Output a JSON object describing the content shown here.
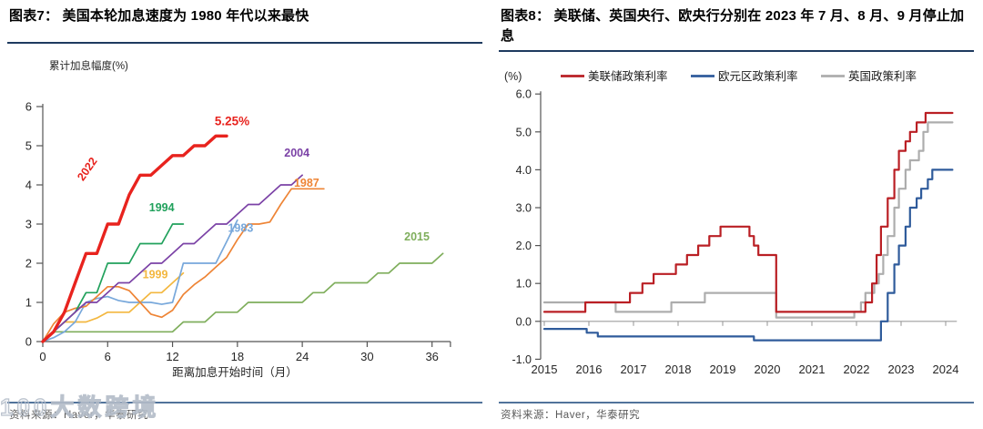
{
  "panels": [
    {
      "title": "图表7：  美国本轮加息速度为 1980 年代以来最快",
      "source": "资料来源：Haver，华泰研究",
      "watermark": "100大数跨境"
    },
    {
      "title": "图表8：  美联储、英国央行、欧央行分别在 2023 年 7 月、8 月、9 月停止加息",
      "source": "资料来源：Haver，华泰研究"
    }
  ],
  "chart_data": [
    {
      "type": "line",
      "title": "美国本轮加息速度为 1980 年代以来最快",
      "ylabel": "累计加息幅度(%)",
      "xlabel": "距离加息开始时间（月）",
      "xlim": [
        0,
        37.7
      ],
      "ylim": [
        0,
        6
      ],
      "xticks": [
        0,
        6,
        12,
        18,
        24,
        30,
        36
      ],
      "yticks": [
        0,
        1,
        2,
        3,
        4,
        5,
        6
      ],
      "grid": false,
      "x_meaning": "months since first hike",
      "series": [
        {
          "name": "2015",
          "color": "#7FAE5C",
          "width": 1.7,
          "values": [
            0,
            0.25,
            0.25,
            0.25,
            0.25,
            0.25,
            0.25,
            0.25,
            0.25,
            0.25,
            0.25,
            0.25,
            0.25,
            0.5,
            0.5,
            0.5,
            0.75,
            0.75,
            0.75,
            1,
            1,
            1,
            1,
            1,
            1,
            1.25,
            1.25,
            1.5,
            1.5,
            1.5,
            1.5,
            1.75,
            1.75,
            2,
            2,
            2,
            2,
            2.25
          ],
          "label": {
            "text": "2015",
            "x": 34.6,
            "y": 2.58,
            "rotate": 0
          }
        },
        {
          "name": "1999",
          "color": "#F3B73F",
          "width": 1.7,
          "values": [
            0,
            0.25,
            0.5,
            0.5,
            0.5,
            0.6,
            0.75,
            0.75,
            0.75,
            1,
            1.25,
            1.25,
            1.5,
            1.75
          ],
          "label": {
            "text": "1999",
            "x": 10.4,
            "y": 1.62,
            "rotate": 0
          }
        },
        {
          "name": "1983",
          "color": "#78A8DB",
          "width": 1.7,
          "values": [
            0,
            0.1,
            0.25,
            0.5,
            1,
            1.1,
            1.15,
            1.05,
            1,
            1,
            1,
            0.95,
            1,
            2,
            2,
            2,
            2,
            2.55,
            3.1
          ],
          "label": {
            "text": "1983",
            "x": 18.3,
            "y": 2.8,
            "rotate": 0
          }
        },
        {
          "name": "1987",
          "color": "#EE8435",
          "width": 1.7,
          "values": [
            0,
            0.45,
            0.75,
            0.85,
            0.9,
            1.15,
            1.4,
            1.4,
            1.3,
            1,
            0.7,
            0.62,
            0.8,
            1.2,
            1.45,
            1.65,
            1.9,
            2.15,
            2.6,
            3,
            3,
            3.05,
            3.5,
            3.9,
            3.9,
            3.9,
            3.9
          ],
          "label": {
            "text": "1987",
            "x": 24.4,
            "y": 3.95,
            "rotate": 0
          }
        },
        {
          "name": "1994",
          "color": "#21A15C",
          "width": 1.7,
          "values": [
            0,
            0.25,
            0.5,
            0.75,
            1.25,
            1.25,
            2,
            2,
            2,
            2.5,
            2.5,
            2.5,
            3,
            3
          ],
          "label": {
            "text": "1994",
            "x": 11,
            "y": 3.32,
            "rotate": 0
          }
        },
        {
          "name": "2004",
          "color": "#7B42A6",
          "width": 1.7,
          "values": [
            0,
            0.25,
            0.5,
            0.75,
            1,
            1,
            1.25,
            1.5,
            1.5,
            1.75,
            2,
            2,
            2.25,
            2.5,
            2.5,
            2.75,
            3,
            3,
            3.25,
            3.5,
            3.5,
            3.75,
            4,
            4,
            4.25
          ],
          "label": {
            "text": "2004",
            "x": 23.5,
            "y": 4.72,
            "rotate": 0
          }
        },
        {
          "name": "2022",
          "color": "#E8231E",
          "width": 3.4,
          "values": [
            0,
            0.25,
            0.75,
            1.5,
            2.25,
            2.25,
            3,
            3,
            3.75,
            4.25,
            4.25,
            4.5,
            4.75,
            4.75,
            5,
            5,
            5.25,
            5.25
          ],
          "label": {
            "text": "2022",
            "x": 4.4,
            "y": 4.35,
            "rotate": -55
          }
        }
      ],
      "annotations": [
        {
          "text": "5.25%",
          "x": 15.9,
          "y": 5.52,
          "color": "#E8231E"
        }
      ]
    },
    {
      "type": "line",
      "title": "美联储、英国央行、欧央行分别在 2023 年 7 月、8 月、9 月停止加息",
      "unit_label": "(%)",
      "xlim": [
        2015,
        2024.2
      ],
      "ylim": [
        -1,
        6
      ],
      "xticks": [
        2015,
        2016,
        2017,
        2018,
        2019,
        2020,
        2021,
        2022,
        2023,
        2024
      ],
      "yticks": [
        -1,
        0,
        1,
        2,
        3,
        4,
        5,
        6
      ],
      "grid": false,
      "legend_position": "top",
      "legend": [
        {
          "label": "美联储政策利率",
          "color": "#BA1F24"
        },
        {
          "label": "欧元区政策利率",
          "color": "#2F5B9B"
        },
        {
          "label": "英国政策利率",
          "color": "#ADADAD"
        }
      ],
      "series": [
        {
          "name": "欧元区政策利率",
          "color": "#2F5B9B",
          "width": 2.2,
          "end": 2024.15,
          "points": [
            [
              2015.0,
              -0.2
            ],
            [
              2015.95,
              -0.3
            ],
            [
              2016.2,
              -0.4
            ],
            [
              2019.7,
              -0.5
            ],
            [
              2022.55,
              0.0
            ],
            [
              2022.7,
              0.75
            ],
            [
              2022.85,
              1.5
            ],
            [
              2022.95,
              2.0
            ],
            [
              2023.1,
              2.5
            ],
            [
              2023.2,
              3.0
            ],
            [
              2023.35,
              3.25
            ],
            [
              2023.45,
              3.5
            ],
            [
              2023.6,
              3.75
            ],
            [
              2023.7,
              4.0
            ]
          ]
        },
        {
          "name": "英国政策利率",
          "color": "#ADADAD",
          "width": 2.2,
          "end": 2024.15,
          "points": [
            [
              2015.0,
              0.5
            ],
            [
              2016.6,
              0.25
            ],
            [
              2017.85,
              0.5
            ],
            [
              2018.6,
              0.75
            ],
            [
              2020.2,
              0.1
            ],
            [
              2021.95,
              0.25
            ],
            [
              2022.1,
              0.5
            ],
            [
              2022.2,
              0.75
            ],
            [
              2022.4,
              1.0
            ],
            [
              2022.5,
              1.25
            ],
            [
              2022.6,
              1.75
            ],
            [
              2022.7,
              2.25
            ],
            [
              2022.85,
              3.0
            ],
            [
              2022.95,
              3.5
            ],
            [
              2023.1,
              4.0
            ],
            [
              2023.2,
              4.25
            ],
            [
              2023.4,
              4.5
            ],
            [
              2023.5,
              5.0
            ],
            [
              2023.6,
              5.25
            ]
          ]
        },
        {
          "name": "美联储政策利率",
          "color": "#BA1F24",
          "width": 2.2,
          "end": 2024.15,
          "points": [
            [
              2015.0,
              0.25
            ],
            [
              2015.92,
              0.5
            ],
            [
              2016.92,
              0.75
            ],
            [
              2017.2,
              1.0
            ],
            [
              2017.45,
              1.25
            ],
            [
              2017.95,
              1.5
            ],
            [
              2018.2,
              1.75
            ],
            [
              2018.45,
              2.0
            ],
            [
              2018.7,
              2.25
            ],
            [
              2018.95,
              2.5
            ],
            [
              2019.6,
              2.25
            ],
            [
              2019.7,
              2.0
            ],
            [
              2019.8,
              1.75
            ],
            [
              2020.2,
              0.25
            ],
            [
              2022.2,
              0.5
            ],
            [
              2022.35,
              1.0
            ],
            [
              2022.45,
              1.75
            ],
            [
              2022.55,
              2.5
            ],
            [
              2022.7,
              3.25
            ],
            [
              2022.85,
              4.0
            ],
            [
              2022.95,
              4.5
            ],
            [
              2023.1,
              4.75
            ],
            [
              2023.2,
              5.0
            ],
            [
              2023.35,
              5.25
            ],
            [
              2023.55,
              5.5
            ]
          ]
        }
      ]
    }
  ]
}
